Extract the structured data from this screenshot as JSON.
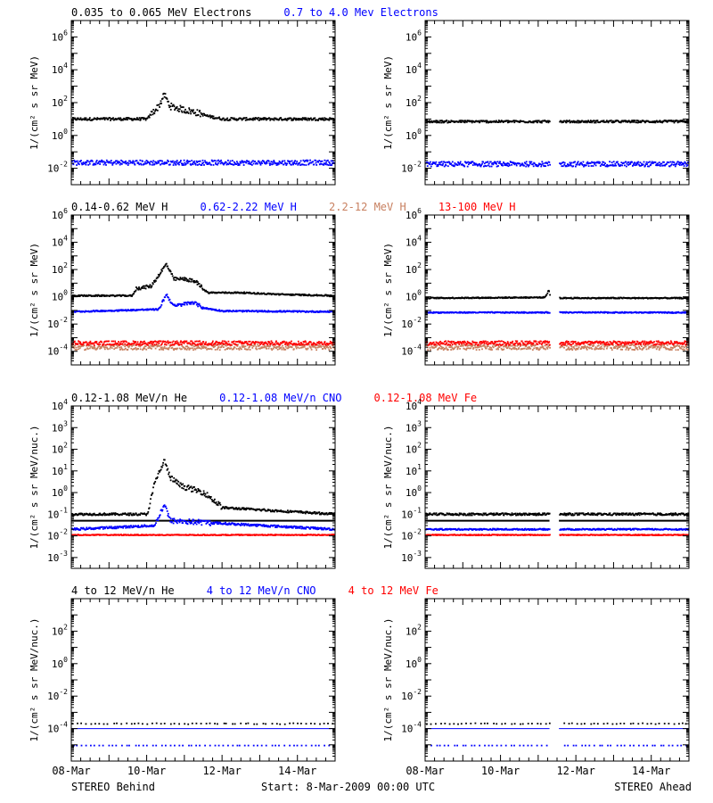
{
  "footer": {
    "left": "STEREO Behind",
    "center": "Start:  8-Mar-2009 00:00 UTC",
    "right": "STEREO Ahead"
  },
  "x_axis": {
    "range_days": [
      0,
      7
    ],
    "ticks": [
      {
        "day": 0,
        "label": "08-Mar"
      },
      {
        "day": 2,
        "label": "10-Mar"
      },
      {
        "day": 4,
        "label": "12-Mar"
      },
      {
        "day": 6,
        "label": "14-Mar"
      }
    ],
    "minor_step_days": 0.25
  },
  "colors": {
    "black": "#000000",
    "blue": "#0000ff",
    "tan": "#c88060",
    "red": "#ff0000"
  },
  "chart_data": [
    {
      "type": "scatter",
      "row": 0,
      "spacecraft": "STEREO Behind",
      "yscale": "log",
      "ylabel": "1/(cm² s sr MeV)",
      "ylim_log10": [
        -3,
        7
      ],
      "ytick_exponents": [
        -2,
        0,
        2,
        4,
        6
      ],
      "titles": [
        {
          "text": "0.035 to 0.065 MeV Electrons",
          "color": "#000000"
        },
        {
          "text": "0.7 to 4.0 Mev Electrons",
          "color": "#0000ff"
        }
      ],
      "series": [
        {
          "color": "#000000",
          "baseline": 10,
          "jitter": 0.08,
          "profile": [
            [
              0,
              10
            ],
            [
              2.0,
              10
            ],
            [
              2.1,
              20
            ],
            [
              2.3,
              60
            ],
            [
              2.45,
              300
            ],
            [
              2.6,
              60
            ],
            [
              2.9,
              40
            ],
            [
              3.3,
              25
            ],
            [
              3.6,
              15
            ],
            [
              4.0,
              10
            ],
            [
              7,
              10
            ]
          ]
        },
        {
          "color": "#0000ff",
          "baseline": 0.022,
          "jitter": 0.15
        }
      ]
    },
    {
      "type": "scatter",
      "row": 0,
      "spacecraft": "STEREO Ahead",
      "yscale": "log",
      "ylabel": "1/(cm² s sr MeV)",
      "ylim_log10": [
        -3,
        7
      ],
      "ytick_exponents": [
        -2,
        0,
        2,
        4,
        6
      ],
      "gap_days": [
        3.3,
        3.55
      ],
      "series": [
        {
          "color": "#000000",
          "baseline": 7,
          "jitter": 0.07
        },
        {
          "color": "#0000ff",
          "baseline": 0.018,
          "jitter": 0.15
        }
      ]
    },
    {
      "type": "scatter",
      "row": 1,
      "spacecraft": "STEREO Behind",
      "yscale": "log",
      "ylabel": "1/(cm² s sr MeV)",
      "ylim_log10": [
        -5,
        6
      ],
      "ytick_exponents": [
        -4,
        -2,
        0,
        2,
        4,
        6
      ],
      "titles": [
        {
          "text": "0.14-0.62 MeV H",
          "color": "#000000"
        },
        {
          "text": "0.62-2.22 MeV H",
          "color": "#0000ff"
        },
        {
          "text": "2.2-12 MeV H",
          "color": "#c88060"
        },
        {
          "text": "13-100 MeV H",
          "color": "#ff0000"
        }
      ],
      "series": [
        {
          "color": "#000000",
          "baseline": 1.2,
          "jitter": 0.05,
          "profile": [
            [
              0,
              1.2
            ],
            [
              1.6,
              1.2
            ],
            [
              1.7,
              4
            ],
            [
              2.1,
              6
            ],
            [
              2.5,
              250
            ],
            [
              2.7,
              20
            ],
            [
              3.0,
              20
            ],
            [
              3.3,
              12
            ],
            [
              3.6,
              2
            ],
            [
              4.5,
              2
            ],
            [
              5.5,
              1.5
            ],
            [
              7,
              1.2
            ]
          ]
        },
        {
          "color": "#0000ff",
          "baseline": 0.08,
          "jitter": 0.05,
          "profile": [
            [
              0,
              0.08
            ],
            [
              2.3,
              0.12
            ],
            [
              2.5,
              1.5
            ],
            [
              2.7,
              0.2
            ],
            [
              3.2,
              0.4
            ],
            [
              3.5,
              0.15
            ],
            [
              4.0,
              0.09
            ],
            [
              7,
              0.08
            ]
          ]
        },
        {
          "color": "#c88060",
          "baseline": 0.0002,
          "jitter": 0.2
        },
        {
          "color": "#ff0000",
          "baseline": 0.0004,
          "jitter": 0.15
        }
      ]
    },
    {
      "type": "scatter",
      "row": 1,
      "spacecraft": "STEREO Ahead",
      "yscale": "log",
      "ylabel": "1/(cm² s sr MeV)",
      "ylim_log10": [
        -5,
        6
      ],
      "ytick_exponents": [
        -4,
        -2,
        0,
        2,
        4,
        6
      ],
      "gap_days": [
        3.3,
        3.55
      ],
      "series": [
        {
          "color": "#000000",
          "baseline": 0.8,
          "jitter": 0.04,
          "profile": [
            [
              0,
              0.8
            ],
            [
              3.15,
              0.9
            ],
            [
              3.28,
              3
            ],
            [
              3.3,
              0.8
            ],
            [
              7,
              0.8
            ]
          ]
        },
        {
          "color": "#0000ff",
          "baseline": 0.07,
          "jitter": 0.04
        },
        {
          "color": "#c88060",
          "baseline": 0.0002,
          "jitter": 0.2
        },
        {
          "color": "#ff0000",
          "baseline": 0.0004,
          "jitter": 0.15
        }
      ]
    },
    {
      "type": "scatter",
      "row": 2,
      "spacecraft": "STEREO Behind",
      "yscale": "log",
      "ylabel": "1/(cm² s sr MeV/nuc.)",
      "ylim_log10": [
        -3.5,
        4
      ],
      "ytick_exponents": [
        -3,
        -2,
        -1,
        0,
        1,
        2,
        3,
        4
      ],
      "titles": [
        {
          "text": "0.12-1.08 MeV/n He",
          "color": "#000000"
        },
        {
          "text": "0.12-1.08 MeV/n CNO",
          "color": "#0000ff"
        },
        {
          "text": "0.12-1.08 MeV Fe",
          "color": "#ff0000"
        }
      ],
      "series": [
        {
          "color": "#000000",
          "baseline": 0.1,
          "jitter": 0.05,
          "profile": [
            [
              0,
              0.1
            ],
            [
              2.0,
              0.1
            ],
            [
              2.2,
              3
            ],
            [
              2.45,
              30
            ],
            [
              2.6,
              5
            ],
            [
              2.9,
              2
            ],
            [
              3.5,
              1
            ],
            [
              4.0,
              0.2
            ],
            [
              7,
              0.1
            ]
          ]
        },
        {
          "color": "#000000",
          "baseline": 0.05,
          "jitter": 0.0,
          "kind": "line"
        },
        {
          "color": "#0000ff",
          "baseline": 0.02,
          "jitter": 0.05,
          "profile": [
            [
              0,
              0.02
            ],
            [
              2.2,
              0.03
            ],
            [
              2.45,
              0.3
            ],
            [
              2.6,
              0.05
            ],
            [
              7,
              0.02
            ]
          ]
        },
        {
          "color": "#ff0000",
          "baseline": 0.011,
          "jitter": 0.02
        }
      ]
    },
    {
      "type": "scatter",
      "row": 2,
      "spacecraft": "STEREO Ahead",
      "yscale": "log",
      "ylabel": "1/(cm² s sr MeV/nuc.)",
      "ylim_log10": [
        -3.5,
        4
      ],
      "ytick_exponents": [
        -3,
        -2,
        -1,
        0,
        1,
        2,
        3,
        4
      ],
      "gap_days": [
        3.3,
        3.55
      ],
      "series": [
        {
          "color": "#000000",
          "baseline": 0.1,
          "jitter": 0.05
        },
        {
          "color": "#000000",
          "baseline": 0.05,
          "jitter": 0.0,
          "kind": "line"
        },
        {
          "color": "#0000ff",
          "baseline": 0.02,
          "jitter": 0.03
        },
        {
          "color": "#ff0000",
          "baseline": 0.011,
          "jitter": 0.02
        }
      ]
    },
    {
      "type": "scatter",
      "row": 3,
      "spacecraft": "STEREO Behind",
      "yscale": "log",
      "ylabel": "1/(cm² s sr MeV/nuc.)",
      "ylim_log10": [
        -6,
        4
      ],
      "ytick_exponents": [
        -4,
        -2,
        0,
        2
      ],
      "titles": [
        {
          "text": "4 to 12 MeV/n He",
          "color": "#000000"
        },
        {
          "text": "4 to 12 MeV/n CNO",
          "color": "#0000ff"
        },
        {
          "text": "4 to 12 MeV Fe",
          "color": "#ff0000"
        }
      ],
      "series": [
        {
          "color": "#000000",
          "baseline": 0.0002,
          "jitter": 0.03,
          "sparse": true
        },
        {
          "color": "#0000ff",
          "baseline": 0.0001,
          "jitter": 0.0,
          "kind": "line"
        },
        {
          "color": "#0000ff",
          "baseline": 9e-06,
          "jitter": 0.0,
          "sparse": true
        }
      ]
    },
    {
      "type": "scatter",
      "row": 3,
      "spacecraft": "STEREO Ahead",
      "yscale": "log",
      "ylabel": "1/(cm² s sr MeV/nuc.)",
      "ylim_log10": [
        -6,
        4
      ],
      "ytick_exponents": [
        -4,
        -2,
        0,
        2
      ],
      "gap_days": [
        3.3,
        3.55
      ],
      "series": [
        {
          "color": "#000000",
          "baseline": 0.0002,
          "jitter": 0.03,
          "sparse": true
        },
        {
          "color": "#0000ff",
          "baseline": 0.0001,
          "jitter": 0.0,
          "kind": "line"
        },
        {
          "color": "#0000ff",
          "baseline": 9e-06,
          "jitter": 0.0,
          "sparse": true
        }
      ]
    }
  ]
}
